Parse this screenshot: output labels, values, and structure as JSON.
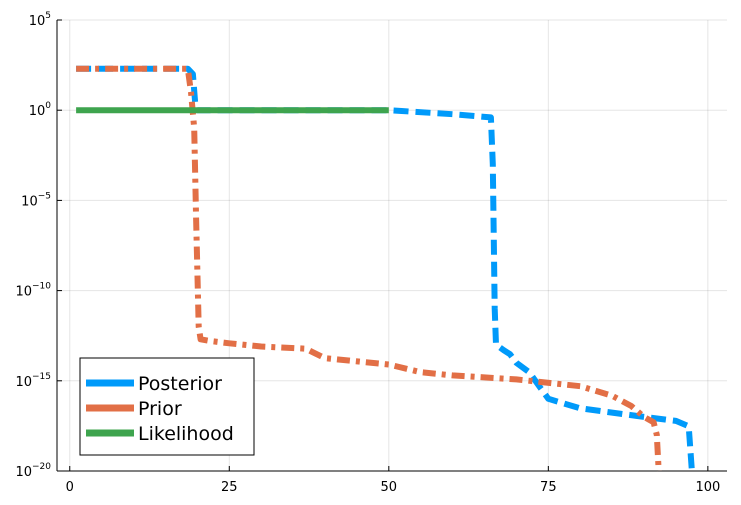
{
  "chart_data": {
    "type": "line",
    "title": "",
    "xlabel": "",
    "ylabel": "",
    "yscale": "log",
    "xlim": [
      -2,
      103
    ],
    "ylim": [
      1e-20,
      100000.0
    ],
    "grid": true,
    "legend_position": "bottom-left",
    "x_ticks": [
      "0",
      "25",
      "50",
      "75",
      "100"
    ],
    "x_tick_values": [
      0,
      25,
      50,
      75,
      100
    ],
    "y_ticks": [
      {
        "base": "10",
        "exp": "−20"
      },
      {
        "base": "10",
        "exp": "−15"
      },
      {
        "base": "10",
        "exp": "−10"
      },
      {
        "base": "10",
        "exp": "−5"
      },
      {
        "base": "10",
        "exp": "0"
      },
      {
        "base": "10",
        "exp": "5"
      }
    ],
    "y_tick_values": [
      1e-20,
      1e-15,
      1e-10,
      1e-05,
      1,
      100000.0
    ],
    "series": [
      {
        "name": "Posterior",
        "color": "#009AFA",
        "dash": "long-dash",
        "points": [
          [
            1,
            200.0
          ],
          [
            18.5,
            200.0
          ],
          [
            19.3,
            100.0
          ],
          [
            19.7,
            1.5
          ],
          [
            20,
            1
          ],
          [
            50,
            1
          ],
          [
            52,
            0.9
          ],
          [
            60,
            0.6
          ],
          [
            66,
            0.4
          ],
          [
            66.3,
            0.001
          ],
          [
            66.6,
            1e-11
          ],
          [
            66.8,
            1e-13
          ],
          [
            68,
            5e-14
          ],
          [
            69,
            3e-14
          ],
          [
            70,
            1e-14
          ],
          [
            72,
            3e-15
          ],
          [
            75,
            1e-16
          ],
          [
            80,
            3e-17
          ],
          [
            90,
            1e-17
          ],
          [
            95,
            6e-18
          ],
          [
            97,
            3e-18
          ],
          [
            97.3,
            1e-19
          ],
          [
            97.5,
            1e-20
          ]
        ]
      },
      {
        "name": "Prior",
        "color": "#E26F46",
        "dash": "dash-dot",
        "points": [
          [
            1,
            200.0
          ],
          [
            18.5,
            200.0
          ],
          [
            19,
            10.0
          ],
          [
            19.5,
            0.1
          ],
          [
            19.8,
            1e-06
          ],
          [
            20.2,
            1e-12
          ],
          [
            20.5,
            2e-13
          ],
          [
            22,
            1.6e-13
          ],
          [
            25,
            1.2e-13
          ],
          [
            30,
            8e-14
          ],
          [
            37,
            6e-14
          ],
          [
            38,
            4e-14
          ],
          [
            40,
            1.8e-14
          ],
          [
            50,
            8e-15
          ],
          [
            55,
            3e-15
          ],
          [
            60,
            2e-15
          ],
          [
            70,
            1.2e-15
          ],
          [
            80,
            5e-16
          ],
          [
            85,
            1.5e-16
          ],
          [
            88,
            4e-17
          ],
          [
            90,
            1e-17
          ],
          [
            91.5,
            5e-18
          ],
          [
            92,
            1e-18
          ],
          [
            92.3,
            1e-20
          ]
        ]
      },
      {
        "name": "Likelihood",
        "color": "#3EA44E",
        "dash": "solid",
        "points": [
          [
            1,
            1
          ],
          [
            50,
            1
          ]
        ]
      }
    ]
  }
}
